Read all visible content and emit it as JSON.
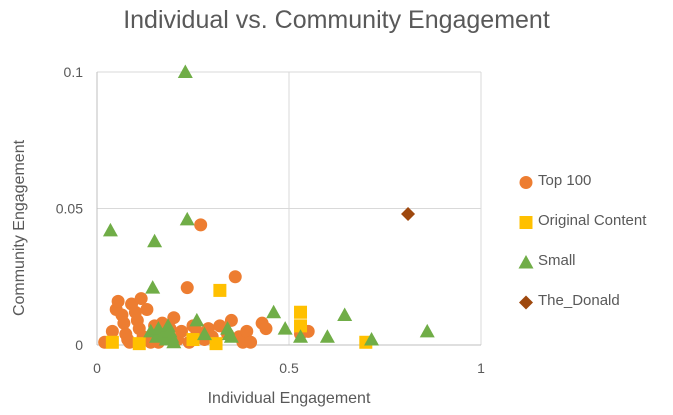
{
  "chart_data": {
    "type": "scatter",
    "title": "Individual vs. Community Engagement",
    "xlabel": "Individual Engagement",
    "ylabel": "Community Engagement",
    "xlim": [
      0,
      1
    ],
    "ylim": [
      0,
      0.1
    ],
    "x_ticks": [
      "0",
      "0.5",
      "1"
    ],
    "y_ticks": [
      "0",
      "0.05",
      "0.1"
    ],
    "grid": true,
    "legend_position": "right",
    "series": [
      {
        "name": "Top 100",
        "marker": "circle",
        "color": "#ed7d31",
        "points": [
          [
            0.02,
            0.001
          ],
          [
            0.04,
            0.005
          ],
          [
            0.05,
            0.013
          ],
          [
            0.055,
            0.016
          ],
          [
            0.065,
            0.011
          ],
          [
            0.07,
            0.008
          ],
          [
            0.075,
            0.004
          ],
          [
            0.08,
            0.002
          ],
          [
            0.085,
            0.001
          ],
          [
            0.09,
            0.015
          ],
          [
            0.1,
            0.012
          ],
          [
            0.105,
            0.009
          ],
          [
            0.11,
            0.006
          ],
          [
            0.115,
            0.017
          ],
          [
            0.12,
            0.003
          ],
          [
            0.13,
            0.013
          ],
          [
            0.14,
            0.001
          ],
          [
            0.15,
            0.007
          ],
          [
            0.16,
            0.001
          ],
          [
            0.165,
            0.004
          ],
          [
            0.17,
            0.008
          ],
          [
            0.18,
            0.003
          ],
          [
            0.19,
            0.006
          ],
          [
            0.2,
            0.01
          ],
          [
            0.21,
            0.002
          ],
          [
            0.22,
            0.005
          ],
          [
            0.235,
            0.021
          ],
          [
            0.24,
            0.001
          ],
          [
            0.25,
            0.007
          ],
          [
            0.26,
            0.005
          ],
          [
            0.27,
            0.044
          ],
          [
            0.28,
            0.002
          ],
          [
            0.29,
            0.006
          ],
          [
            0.3,
            0.003
          ],
          [
            0.32,
            0.007
          ],
          [
            0.34,
            0.004
          ],
          [
            0.35,
            0.009
          ],
          [
            0.36,
            0.025
          ],
          [
            0.37,
            0.003
          ],
          [
            0.38,
            0.001
          ],
          [
            0.39,
            0.005
          ],
          [
            0.4,
            0.001
          ],
          [
            0.43,
            0.008
          ],
          [
            0.44,
            0.006
          ],
          [
            0.53,
            0.004
          ],
          [
            0.55,
            0.005
          ]
        ]
      },
      {
        "name": "Original Content",
        "marker": "square",
        "color": "#ffc000",
        "points": [
          [
            0.04,
            0.001
          ],
          [
            0.11,
            0.0005
          ],
          [
            0.25,
            0.002
          ],
          [
            0.31,
            0.0005
          ],
          [
            0.32,
            0.02
          ],
          [
            0.53,
            0.012
          ],
          [
            0.53,
            0.007
          ],
          [
            0.7,
            0.001
          ]
        ]
      },
      {
        "name": "Small",
        "marker": "triangle",
        "color": "#70ad47",
        "points": [
          [
            0.035,
            0.042
          ],
          [
            0.14,
            0.005
          ],
          [
            0.145,
            0.021
          ],
          [
            0.15,
            0.038
          ],
          [
            0.155,
            0.003
          ],
          [
            0.16,
            0.006
          ],
          [
            0.175,
            0.004
          ],
          [
            0.18,
            0.002
          ],
          [
            0.185,
            0.007
          ],
          [
            0.19,
            0.005
          ],
          [
            0.195,
            0.003
          ],
          [
            0.2,
            0.001
          ],
          [
            0.23,
            0.1
          ],
          [
            0.235,
            0.046
          ],
          [
            0.26,
            0.009
          ],
          [
            0.28,
            0.004
          ],
          [
            0.34,
            0.006
          ],
          [
            0.345,
            0.004
          ],
          [
            0.35,
            0.003
          ],
          [
            0.46,
            0.012
          ],
          [
            0.49,
            0.006
          ],
          [
            0.53,
            0.003
          ],
          [
            0.6,
            0.003
          ],
          [
            0.645,
            0.011
          ],
          [
            0.715,
            0.002
          ],
          [
            0.86,
            0.005
          ]
        ]
      },
      {
        "name": "The_Donald",
        "marker": "diamond",
        "color": "#9e480e",
        "points": [
          [
            0.81,
            0.048
          ]
        ]
      }
    ]
  }
}
